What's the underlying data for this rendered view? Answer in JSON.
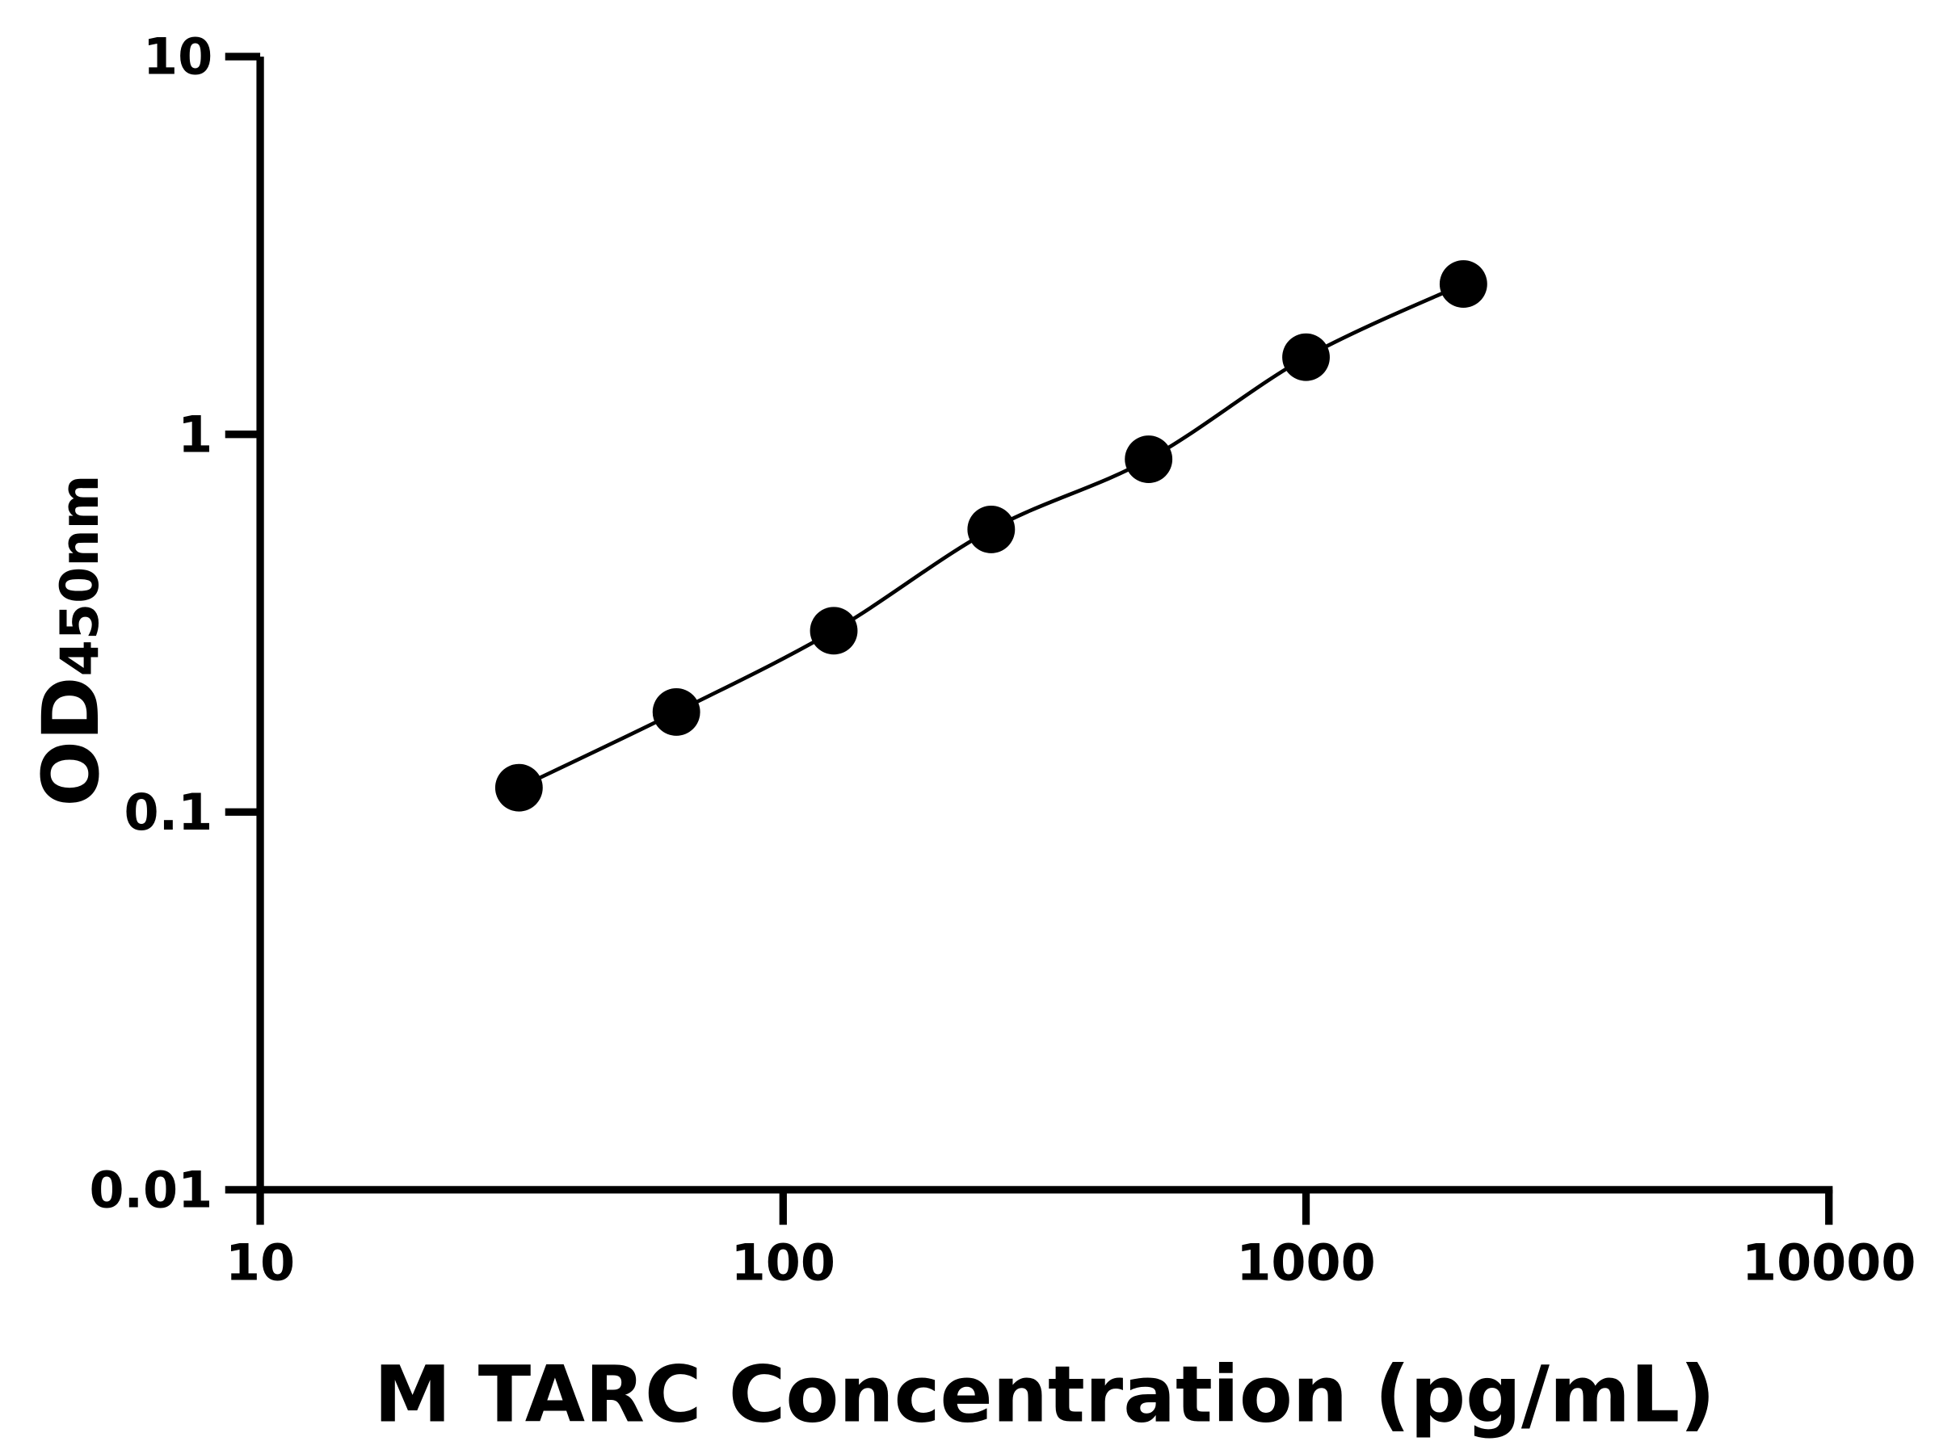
{
  "chart_data": {
    "type": "scatter",
    "title": "",
    "xlabel": "M TARC Concentration (pg/mL)",
    "ylabel_main": "OD",
    "ylabel_sub": "450nm",
    "x_scale": "log",
    "y_scale": "log",
    "xlim": [
      10,
      10000
    ],
    "ylim": [
      0.01,
      10
    ],
    "x_ticks": [
      10,
      100,
      1000,
      10000
    ],
    "x_tick_labels": [
      "10",
      "100",
      "1000",
      "10000"
    ],
    "y_ticks": [
      0.01,
      0.1,
      1,
      10
    ],
    "y_tick_labels": [
      "0.01",
      "0.1",
      "1",
      "10"
    ],
    "grid": false,
    "legend": "none",
    "fit_curve": true,
    "color": "#000000",
    "series": [
      {
        "x": [
          31.25,
          62.5,
          125,
          250,
          500,
          1000,
          2000
        ],
        "y": [
          0.116,
          0.184,
          0.302,
          0.56,
          0.859,
          1.6,
          2.5
        ]
      }
    ]
  }
}
